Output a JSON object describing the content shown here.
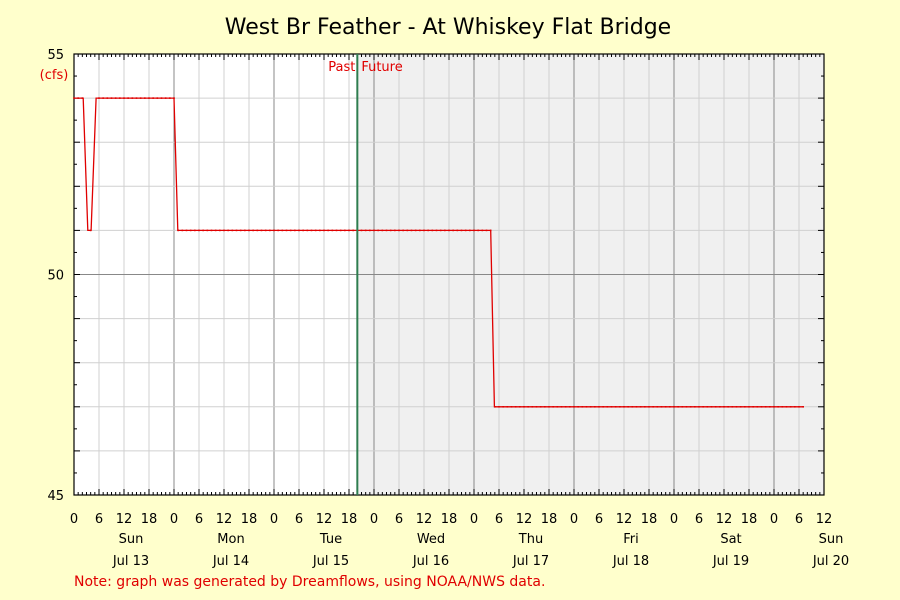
{
  "chart_data": {
    "type": "line",
    "title": "West Br Feather - At Whiskey Flat Bridge",
    "ylabel": "(cfs)",
    "xlabel": "",
    "ylim": [
      45,
      55
    ],
    "y_ticks": [
      45,
      50,
      55
    ],
    "x_range_hours": [
      0,
      180
    ],
    "hour_ticks": [
      "0",
      "6",
      "12",
      "18"
    ],
    "days": [
      {
        "weekday": "Sun",
        "date": "Jul 13"
      },
      {
        "weekday": "Mon",
        "date": "Jul 14"
      },
      {
        "weekday": "Tue",
        "date": "Jul 15"
      },
      {
        "weekday": "Wed",
        "date": "Jul 16"
      },
      {
        "weekday": "Thu",
        "date": "Jul 17"
      },
      {
        "weekday": "Fri",
        "date": "Jul 18"
      },
      {
        "weekday": "Sat",
        "date": "Jul 19"
      },
      {
        "weekday": "Sun",
        "date": "Jul 20"
      }
    ],
    "now_hour": 68,
    "past_label": "Past",
    "future_label": "Future",
    "grid": true,
    "series": [
      {
        "color": "#e00000",
        "x": [
          0,
          2.2,
          3.3,
          4.1,
          5.3,
          24,
          24.9,
          100,
          100.9,
          175
        ],
        "y": [
          54,
          54,
          51,
          51,
          54,
          54,
          51,
          51,
          47,
          47
        ]
      }
    ]
  },
  "note": "Note: graph was generated by Dreamflows, using NOAA/NWS data."
}
